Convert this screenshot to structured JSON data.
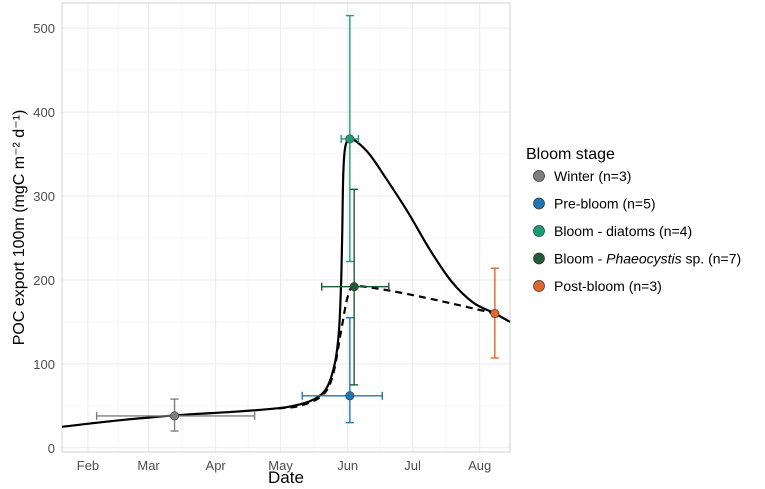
{
  "chart_data": {
    "type": "scatter",
    "xlabel": "Date",
    "ylabel": "POC export 100m (mgC m⁻² d⁻¹)",
    "x_axis": {
      "domain_doy": [
        20,
        227
      ],
      "tick_labels": [
        "Feb",
        "Mar",
        "Apr",
        "May",
        "Jun",
        "Jul",
        "Aug"
      ],
      "tick_dates": [
        "Feb 1",
        "Mar 1",
        "Apr 1",
        "May 1",
        "Jun 1",
        "Jul 1",
        "Aug 1"
      ],
      "tick_doy": [
        32,
        60,
        91,
        121,
        152,
        182,
        213
      ]
    },
    "y_axis": {
      "range": [
        -5,
        530
      ],
      "ticks": [
        0,
        100,
        200,
        300,
        400,
        500
      ]
    },
    "grid": true,
    "legend": {
      "title": "Bloom stage",
      "position": "right",
      "entries": [
        {
          "key": "winter",
          "pre": "Winter (n=3)",
          "italic": "",
          "post": "",
          "color": "#7f7f7f"
        },
        {
          "key": "pre",
          "pre": "Pre-bloom (n=5)",
          "italic": "",
          "post": "",
          "color": "#1f77b4"
        },
        {
          "key": "diatoms",
          "pre": "Bloom - diatoms (n=4)",
          "italic": "",
          "post": "",
          "color": "#1b9e77"
        },
        {
          "key": "phaeo",
          "pre": "Bloom - ",
          "italic": "Phaeocystis",
          "post": " sp. (n=7)",
          "color": "#1f5c36"
        },
        {
          "key": "post",
          "pre": "Post-bloom (n=3)",
          "italic": "",
          "post": "",
          "color": "#e3662b"
        }
      ]
    },
    "points": [
      {
        "stage": "winter",
        "x": 72,
        "y": 38,
        "xerr": [
          36,
          109
        ],
        "yerr": [
          20,
          58
        ]
      },
      {
        "stage": "pre",
        "x": 153,
        "y": 62,
        "xerr": [
          131,
          168
        ],
        "yerr": [
          30,
          155
        ]
      },
      {
        "stage": "diatoms",
        "x": 153,
        "y": 368,
        "xerr": [
          149,
          157
        ],
        "yerr": [
          222,
          515
        ]
      },
      {
        "stage": "phaeo",
        "x": 155,
        "y": 192,
        "xerr": [
          140,
          171
        ],
        "yerr": [
          75,
          308
        ]
      },
      {
        "stage": "post",
        "x": 220,
        "y": 160,
        "xerr": [
          219,
          221
        ],
        "yerr": [
          107,
          214
        ]
      }
    ],
    "series": [
      {
        "style": "solid",
        "points": [
          [
            20,
            25
          ],
          [
            40,
            31
          ],
          [
            60,
            36
          ],
          [
            80,
            40
          ],
          [
            100,
            43
          ],
          [
            115,
            46
          ],
          [
            125,
            49
          ],
          [
            135,
            56
          ],
          [
            142,
            70
          ],
          [
            146,
            100
          ],
          [
            148,
            140
          ],
          [
            149,
            200
          ],
          [
            149.5,
            260
          ],
          [
            150,
            330
          ],
          [
            151,
            360
          ],
          [
            153,
            368
          ],
          [
            156,
            365
          ],
          [
            162,
            350
          ],
          [
            170,
            320
          ],
          [
            180,
            280
          ],
          [
            190,
            236
          ],
          [
            200,
            198
          ],
          [
            210,
            173
          ],
          [
            220,
            160
          ],
          [
            227,
            150
          ]
        ]
      },
      {
        "style": "dashed",
        "points": [
          [
            120,
            47
          ],
          [
            130,
            50
          ],
          [
            140,
            62
          ],
          [
            145,
            85
          ],
          [
            149,
            140
          ],
          [
            152,
            180
          ],
          [
            155,
            192
          ],
          [
            165,
            190
          ],
          [
            180,
            183
          ],
          [
            200,
            172
          ],
          [
            220,
            160
          ]
        ]
      }
    ]
  }
}
